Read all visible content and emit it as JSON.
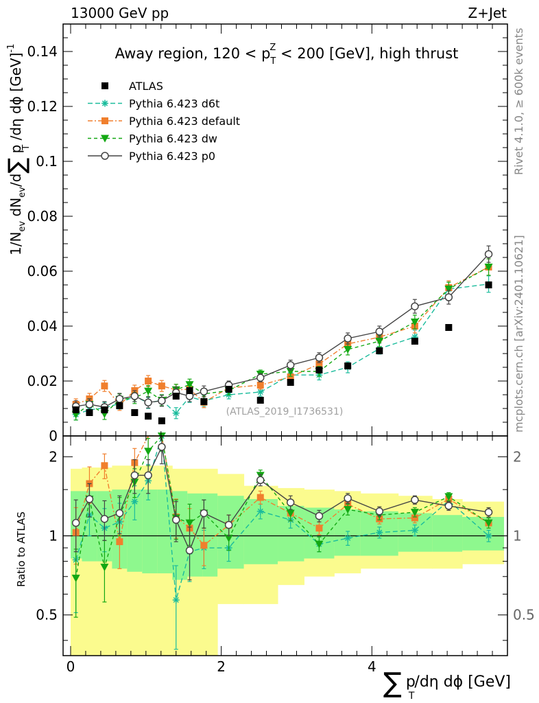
{
  "header": {
    "left": "13000 GeV pp",
    "right": "Z+Jet"
  },
  "side_labels": {
    "rivet": "Rivet 4.1.0, ≥ 600k events",
    "mcplots": "mcplots.cern.ch [arXiv:2401.10621]"
  },
  "watermark": "(ATLAS_2019_I1736531)",
  "colors": {
    "atlas": "#000000",
    "d6t": "#1abc9c",
    "default": "#f07f2d",
    "dw": "#13a813",
    "p0": "#444444",
    "band_inner": "#8ef88e",
    "band_outer": "#fbfb8e"
  },
  "chart_data": {
    "type": "line",
    "title": "Away region, 120 < p_T^Z < 200 [GeV], high thrust",
    "title_parts": {
      "pre": "Away region, 120 < p",
      "sub": "T",
      "sup": "Z",
      "post": " < 200 [GeV], high thrust"
    },
    "xlabel": "∑ p_T/dη dϕ [GeV]",
    "xlabel_parts": {
      "sum": "∑",
      "p": "p",
      "sub": "T",
      "rest": "/dη dϕ [GeV]"
    },
    "ylabel": "1/N_ev dN_ev/d∑ p_T/dη dϕ [GeV]^-1",
    "ylabel_parts": {
      "a": "1/N",
      "a_sub": "ev",
      "b": " dN",
      "b_sub": "ev",
      "c": "/d",
      "sum": "∑",
      "p": " p",
      "p_sub": "T",
      "d": " /dη dϕ  [GeV]",
      "sup": "-1"
    },
    "ratio_ylabel": "Ratio to ATLAS",
    "xlim": [
      -0.1,
      5.8
    ],
    "ylim": [
      0,
      0.15
    ],
    "ratio_ylim": [
      0.35,
      2.4
    ],
    "x_ticks": [
      0,
      2,
      4
    ],
    "x_tick_labels": [
      "0",
      "2",
      "4"
    ],
    "y_ticks": [
      0,
      0.02,
      0.04,
      0.06,
      0.08,
      0.1,
      0.12,
      0.14
    ],
    "y_tick_labels": [
      "0",
      "0.02",
      "0.04",
      "0.06",
      "0.08",
      "0.1",
      "0.12",
      "0.14"
    ],
    "ratio_ticks": [
      0.5,
      1,
      2
    ],
    "ratio_tick_labels": [
      "0.5",
      "1",
      "2"
    ],
    "bins": [
      [
        0,
        0.15
      ],
      [
        0.15,
        0.35
      ],
      [
        0.35,
        0.55
      ],
      [
        0.55,
        0.75
      ],
      [
        0.75,
        0.95
      ],
      [
        0.95,
        1.15
      ],
      [
        1.15,
        1.35
      ],
      [
        1.35,
        1.55
      ],
      [
        1.55,
        1.75
      ],
      [
        1.75,
        1.95
      ],
      [
        1.95,
        2.3
      ],
      [
        2.3,
        2.75
      ],
      [
        2.75,
        3.1
      ],
      [
        3.1,
        3.5
      ],
      [
        3.5,
        3.85
      ],
      [
        3.85,
        4.35
      ],
      [
        4.35,
        4.8
      ],
      [
        4.8,
        5.2
      ],
      [
        5.2,
        5.75
      ]
    ],
    "x": [
      0.07,
      0.25,
      0.45,
      0.65,
      0.85,
      1.03,
      1.21,
      1.4,
      1.58,
      1.77,
      2.1,
      2.52,
      2.92,
      3.3,
      3.68,
      4.1,
      4.57,
      5.02,
      5.55
    ],
    "atlas": [
      0.0095,
      0.0085,
      0.0095,
      0.011,
      0.0085,
      0.0072,
      0.0055,
      0.0145,
      0.0165,
      0.0125,
      0.017,
      0.013,
      0.0195,
      0.024,
      0.0255,
      0.031,
      0.0345,
      0.0395,
      0.055
    ],
    "band_inner": [
      [
        0.82,
        1.48
      ],
      [
        0.8,
        1.48
      ],
      [
        0.8,
        1.48
      ],
      [
        0.75,
        1.5
      ],
      [
        0.73,
        1.5
      ],
      [
        0.72,
        1.5
      ],
      [
        0.72,
        1.5
      ],
      [
        0.68,
        1.48
      ],
      [
        0.7,
        1.45
      ],
      [
        0.7,
        1.45
      ],
      [
        0.75,
        1.42
      ],
      [
        0.78,
        1.38
      ],
      [
        0.8,
        1.3
      ],
      [
        0.82,
        1.28
      ],
      [
        0.84,
        1.26
      ],
      [
        0.84,
        1.24
      ],
      [
        0.87,
        1.22
      ],
      [
        0.87,
        1.2
      ],
      [
        0.88,
        1.18
      ]
    ],
    "band_outer": [
      [
        0.35,
        1.8
      ],
      [
        0.35,
        1.82
      ],
      [
        0.35,
        1.82
      ],
      [
        0.35,
        1.85
      ],
      [
        0.35,
        1.85
      ],
      [
        0.35,
        1.85
      ],
      [
        0.35,
        1.85
      ],
      [
        0.35,
        1.8
      ],
      [
        0.35,
        1.8
      ],
      [
        0.35,
        1.8
      ],
      [
        0.55,
        1.72
      ],
      [
        0.55,
        1.55
      ],
      [
        0.65,
        1.52
      ],
      [
        0.7,
        1.5
      ],
      [
        0.72,
        1.48
      ],
      [
        0.75,
        1.45
      ],
      [
        0.75,
        1.42
      ],
      [
        0.75,
        1.38
      ],
      [
        0.78,
        1.35
      ]
    ],
    "series": [
      {
        "name": "Pythia 6.423 d6t",
        "key": "d6t",
        "marker": "star",
        "dash": "7,4",
        "values": [
          0.0078,
          0.0095,
          0.0102,
          0.0118,
          0.0145,
          0.012,
          0.013,
          0.0083,
          0.0142,
          0.0128,
          0.015,
          0.016,
          0.0222,
          0.0222,
          0.025,
          0.0318,
          0.036,
          0.0535,
          0.0553
        ],
        "errors": [
          0.002,
          0.002,
          0.002,
          0.002,
          0.002,
          0.002,
          0.002,
          0.002,
          0.002,
          0.002,
          0.0015,
          0.0015,
          0.0018,
          0.0018,
          0.002,
          0.002,
          0.0025,
          0.0025,
          0.003
        ],
        "ratio": [
          0.81,
          1.2,
          1.07,
          1.13,
          1.35,
          1.62,
          2.4,
          0.57,
          0.87,
          0.9,
          0.9,
          1.24,
          1.15,
          0.93,
          0.98,
          1.03,
          1.05,
          1.36,
          1.0
        ],
        "ratio_errors": [
          0.3,
          0.2,
          0.2,
          0.2,
          0.2,
          0.25,
          0.3,
          0.2,
          0.2,
          0.15,
          0.1,
          0.08,
          0.08,
          0.06,
          0.06,
          0.05,
          0.05,
          0.05,
          0.05
        ]
      },
      {
        "name": "Pythia 6.423 default",
        "key": "default",
        "marker": "square",
        "dash": "7,3,2,3",
        "values": [
          0.0115,
          0.0135,
          0.0182,
          0.0113,
          0.0165,
          0.02,
          0.0182,
          0.0168,
          0.017,
          0.0123,
          0.0175,
          0.0185,
          0.0215,
          0.0262,
          0.0335,
          0.036,
          0.04,
          0.054,
          0.0615
        ],
        "errors": [
          0.002,
          0.002,
          0.002,
          0.002,
          0.002,
          0.002,
          0.002,
          0.002,
          0.002,
          0.002,
          0.0015,
          0.0015,
          0.0018,
          0.0018,
          0.002,
          0.002,
          0.0025,
          0.0025,
          0.003
        ],
        "ratio": [
          1.03,
          1.58,
          1.85,
          0.95,
          1.9,
          2.45,
          2.5,
          1.18,
          1.07,
          0.92,
          1.1,
          1.4,
          1.22,
          1.07,
          1.32,
          1.16,
          1.17,
          1.38,
          1.12
        ],
        "ratio_errors": [
          0.25,
          0.25,
          0.2,
          0.2,
          0.25,
          0.3,
          0.3,
          0.2,
          0.2,
          0.15,
          0.1,
          0.08,
          0.08,
          0.06,
          0.06,
          0.05,
          0.05,
          0.05,
          0.05
        ]
      },
      {
        "name": "Pythia 6.423 dw",
        "key": "dw",
        "marker": "triangle",
        "dash": "5,4",
        "values": [
          0.0078,
          0.0115,
          0.008,
          0.0133,
          0.0138,
          0.0163,
          0.013,
          0.0168,
          0.0187,
          0.0153,
          0.0165,
          0.0225,
          0.0235,
          0.0235,
          0.0315,
          0.0345,
          0.0415,
          0.0535,
          0.0615
        ],
        "errors": [
          0.002,
          0.002,
          0.002,
          0.002,
          0.002,
          0.002,
          0.002,
          0.002,
          0.002,
          0.002,
          0.0015,
          0.0015,
          0.0018,
          0.0018,
          0.002,
          0.002,
          0.0025,
          0.0025,
          0.003
        ],
        "ratio": [
          0.69,
          1.38,
          0.76,
          1.2,
          1.6,
          2.1,
          2.4,
          1.17,
          1.12,
          1.22,
          0.98,
          1.7,
          1.22,
          0.93,
          1.26,
          1.2,
          1.23,
          1.41,
          1.12
        ],
        "ratio_errors": [
          0.2,
          0.2,
          0.2,
          0.2,
          0.2,
          0.25,
          0.3,
          0.2,
          0.2,
          0.15,
          0.1,
          0.08,
          0.08,
          0.06,
          0.06,
          0.05,
          0.05,
          0.05,
          0.05
        ]
      },
      {
        "name": "Pythia 6.423 p0",
        "key": "p0",
        "marker": "circle",
        "dash": "",
        "values": [
          0.0108,
          0.0115,
          0.0105,
          0.0135,
          0.0145,
          0.0122,
          0.0128,
          0.0158,
          0.0145,
          0.0162,
          0.0185,
          0.0212,
          0.0258,
          0.0285,
          0.0355,
          0.038,
          0.0472,
          0.0505,
          0.0662
        ],
        "errors": [
          0.002,
          0.002,
          0.002,
          0.002,
          0.002,
          0.002,
          0.002,
          0.002,
          0.002,
          0.002,
          0.0015,
          0.0015,
          0.0018,
          0.0018,
          0.002,
          0.002,
          0.0025,
          0.0025,
          0.003
        ],
        "ratio": [
          1.12,
          1.38,
          1.16,
          1.22,
          1.7,
          1.7,
          2.18,
          1.15,
          0.88,
          1.22,
          1.1,
          1.63,
          1.34,
          1.19,
          1.39,
          1.24,
          1.37,
          1.3,
          1.23
        ],
        "ratio_errors": [
          0.25,
          0.2,
          0.2,
          0.2,
          0.25,
          0.25,
          0.3,
          0.2,
          0.2,
          0.15,
          0.1,
          0.08,
          0.08,
          0.06,
          0.06,
          0.05,
          0.05,
          0.05,
          0.05
        ]
      }
    ]
  }
}
